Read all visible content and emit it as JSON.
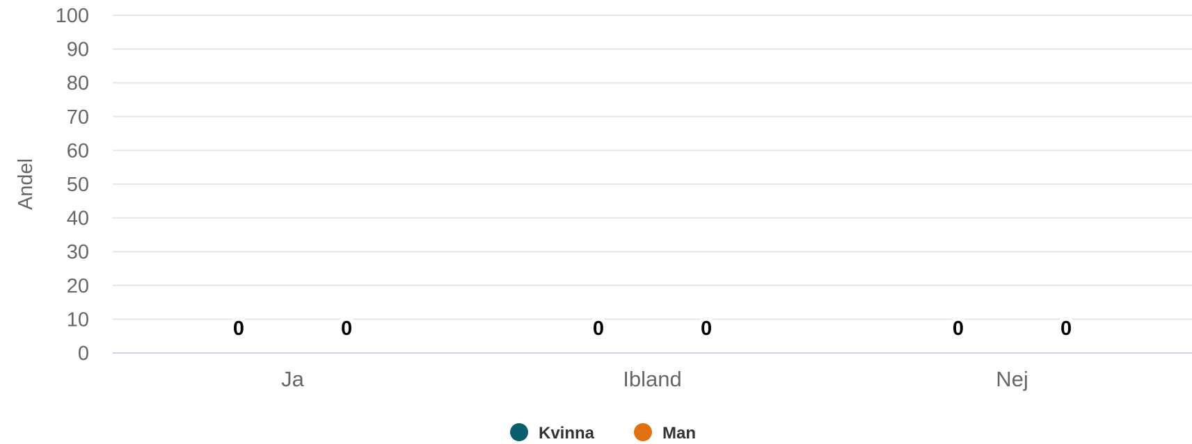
{
  "chart_data": {
    "type": "bar",
    "ylabel": "Andel",
    "ylim": [
      0,
      100
    ],
    "yticks": [
      0,
      10,
      20,
      30,
      40,
      50,
      60,
      70,
      80,
      90,
      100
    ],
    "categories": [
      "Ja",
      "Ibland",
      "Nej"
    ],
    "series": [
      {
        "name": "Kvinna",
        "color": "#0b5e6e",
        "values": [
          0,
          0,
          0
        ]
      },
      {
        "name": "Man",
        "color": "#e1700f",
        "values": [
          0,
          0,
          0
        ]
      }
    ],
    "data_labels": true,
    "grid": true,
    "legend": "bottom-center"
  }
}
